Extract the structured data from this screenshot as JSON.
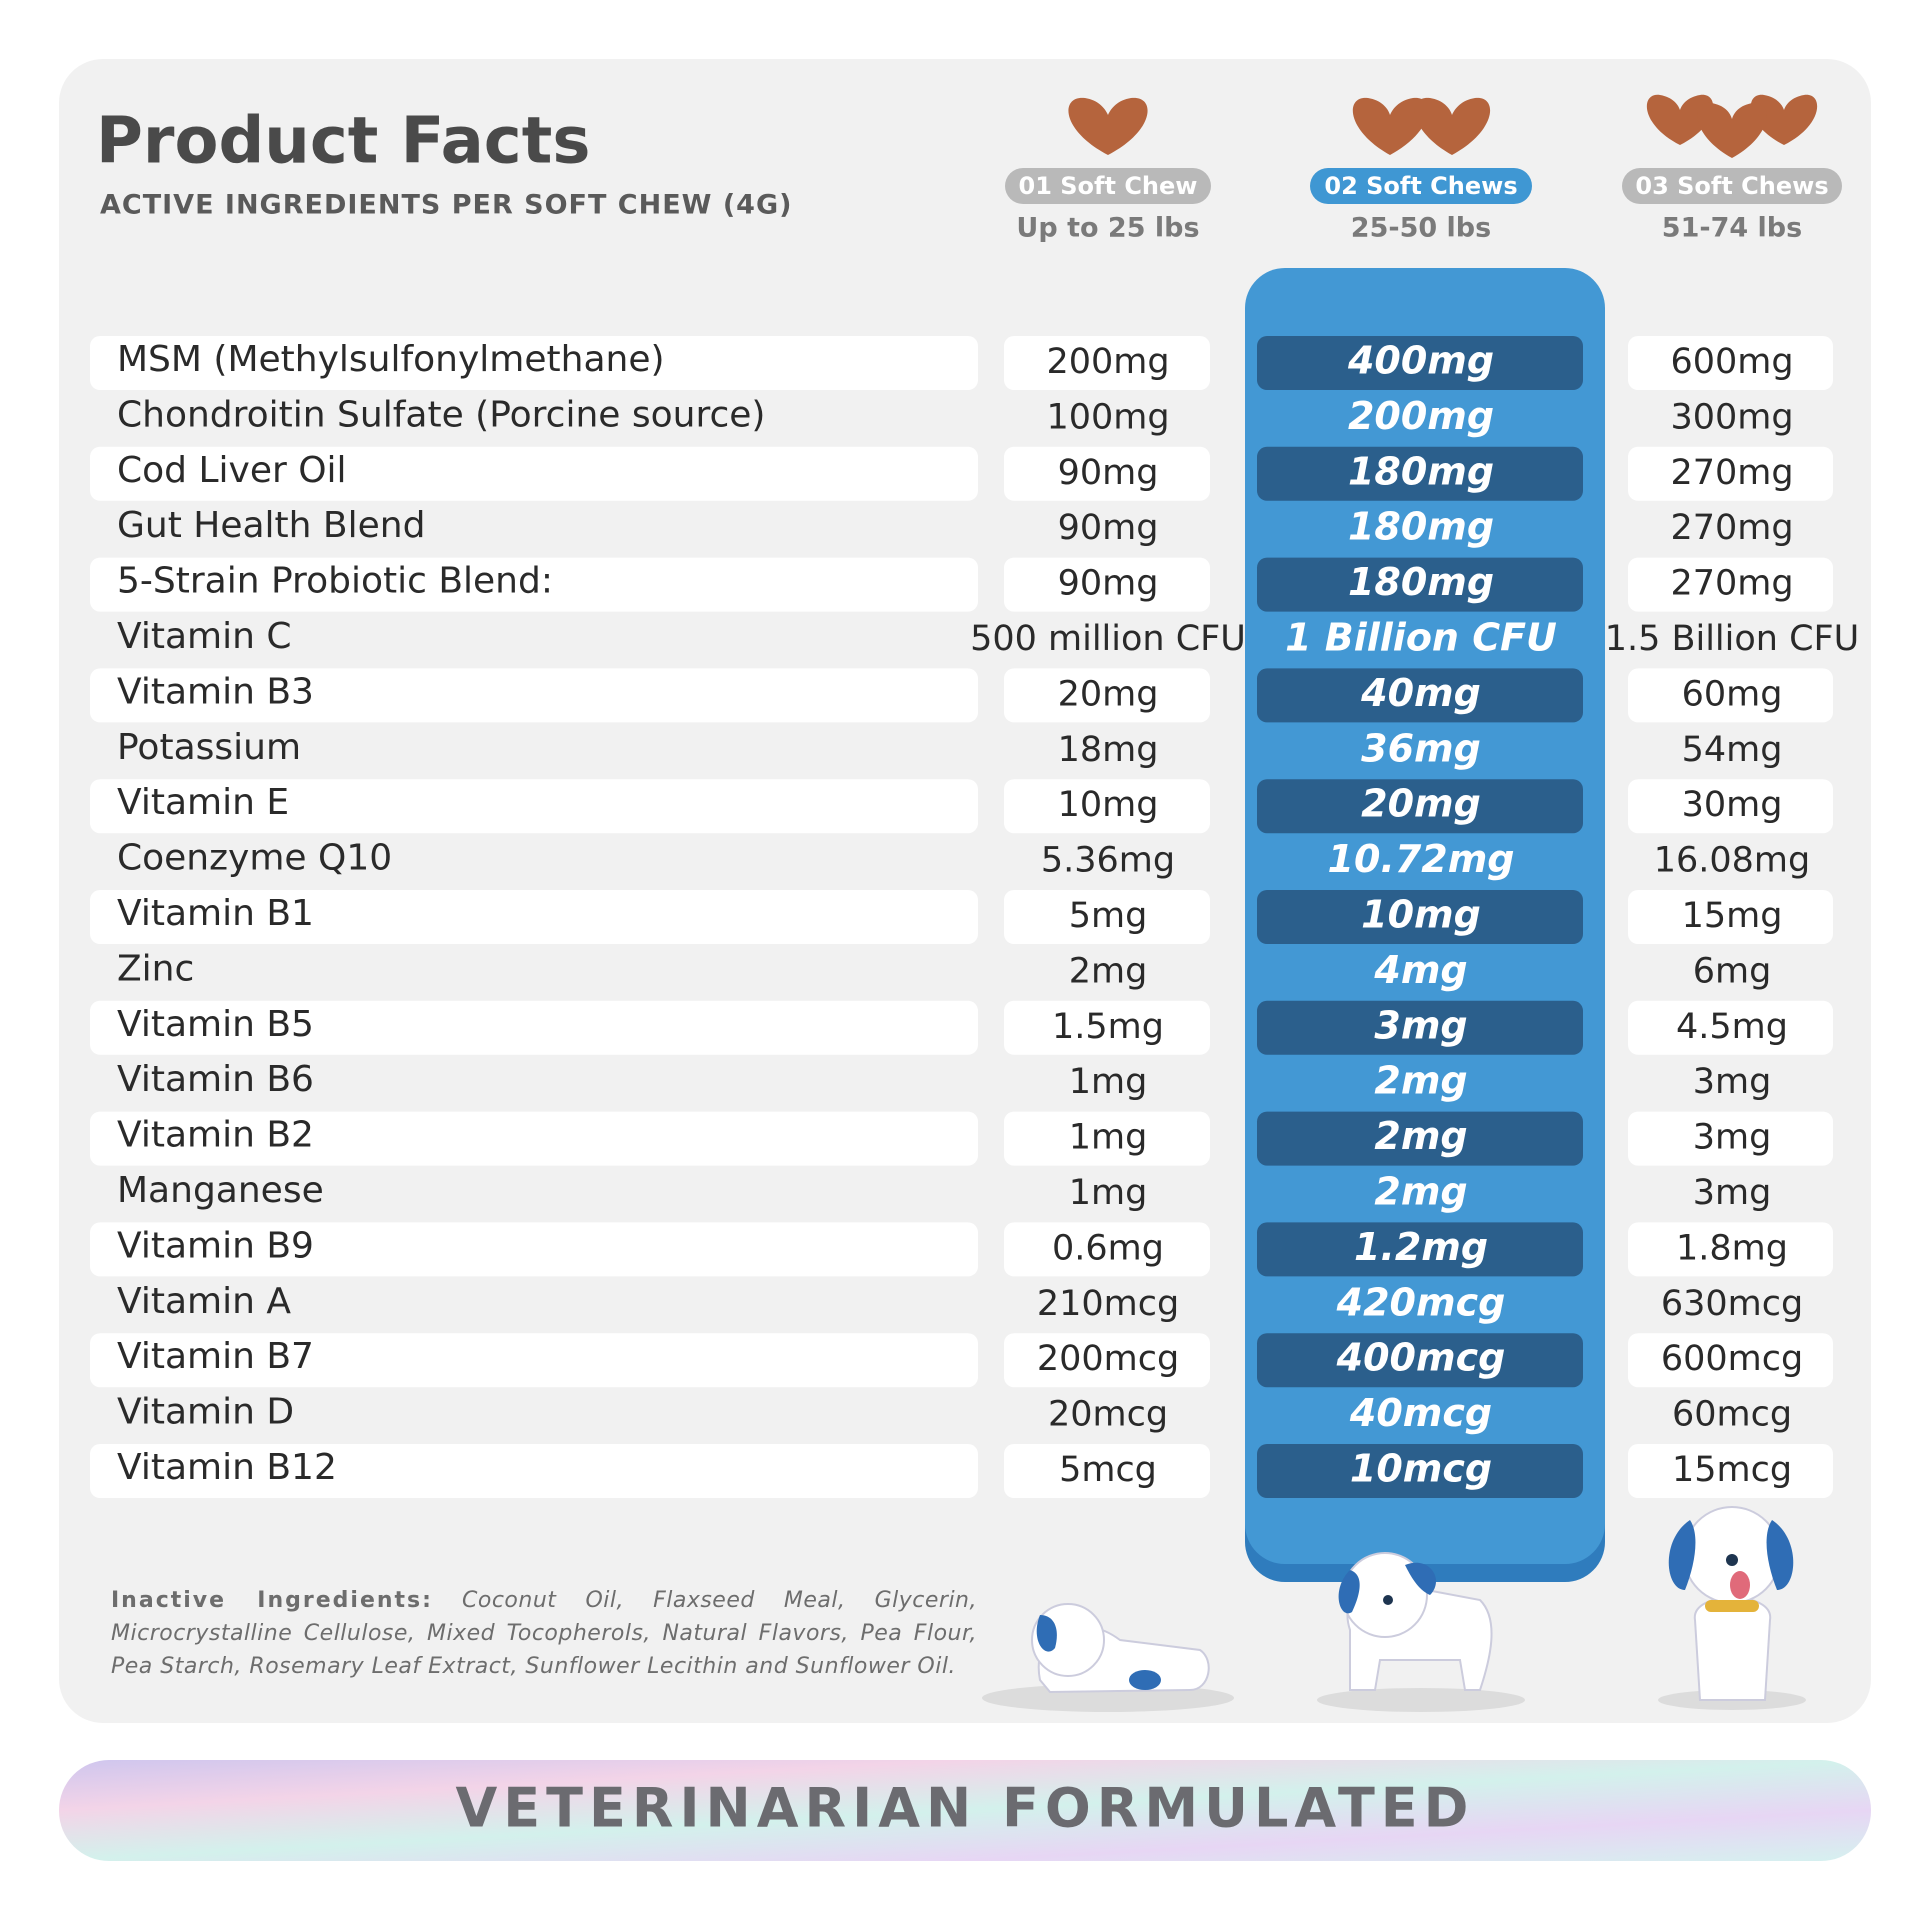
{
  "header": {
    "title": "Product Facts",
    "subtitle": "ACTIVE INGREDIENTS PER SOFT CHEW (4G)"
  },
  "columns": [
    {
      "label": "01 Soft Chew",
      "weight": "Up to 25 lbs"
    },
    {
      "label": "02 Soft Chews",
      "weight": "25-50 lbs"
    },
    {
      "label": "03 Soft Chews",
      "weight": "51-74 lbs"
    }
  ],
  "table": {
    "rows": [
      [
        "MSM (Methylsulfonylmethane)",
        "200mg",
        "400mg",
        "600mg"
      ],
      [
        "Chondroitin Sulfate (Porcine source)",
        "100mg",
        "200mg",
        "300mg"
      ],
      [
        "Cod Liver Oil",
        "90mg",
        "180mg",
        "270mg"
      ],
      [
        "Gut Health Blend",
        "90mg",
        "180mg",
        "270mg"
      ],
      [
        "5-Strain Probiotic Blend:",
        "90mg",
        "180mg",
        "270mg"
      ],
      [
        "Vitamin C",
        "500 million CFU",
        "1 Billion CFU",
        "1.5 Billion CFU"
      ],
      [
        "Vitamin B3",
        "20mg",
        "40mg",
        "60mg"
      ],
      [
        "Potassium",
        "18mg",
        "36mg",
        "54mg"
      ],
      [
        "Vitamin E",
        "10mg",
        "20mg",
        "30mg"
      ],
      [
        "Coenzyme Q10",
        "5.36mg",
        "10.72mg",
        "16.08mg"
      ],
      [
        "Vitamin B1",
        "5mg",
        "10mg",
        "15mg"
      ],
      [
        "Zinc",
        "2mg",
        "4mg",
        "6mg"
      ],
      [
        "Vitamin B5",
        "1.5mg",
        "3mg",
        "4.5mg"
      ],
      [
        "Vitamin B6",
        "1mg",
        "2mg",
        "3mg"
      ],
      [
        "Vitamin B2",
        "1mg",
        "2mg",
        "3mg"
      ],
      [
        "Manganese",
        "1mg",
        "2mg",
        "3mg"
      ],
      [
        "Vitamin B9",
        "0.6mg",
        "1.2mg",
        "1.8mg"
      ],
      [
        "Vitamin A",
        "210mcg",
        "420mcg",
        "630mcg"
      ],
      [
        "Vitamin B7",
        "200mcg",
        "400mcg",
        "600mcg"
      ],
      [
        "Vitamin D",
        "20mcg",
        "40mcg",
        "60mcg"
      ],
      [
        "Vitamin B12",
        "5mcg",
        "10mcg",
        "15mcg"
      ]
    ]
  },
  "footer": {
    "inactive_label": "Inactive Ingredients:",
    "inactive_text": "Coconut Oil, Flaxseed Meal, Glycerin, Microcrystalline Cellulose, Mixed Tocopherols, Natural Flavors, Pea Flour, Pea Starch, Rosemary Leaf Extract, Sunflower Lecithin and Sunflower Oil."
  },
  "banner": "VETERINARIAN FORMULATED"
}
